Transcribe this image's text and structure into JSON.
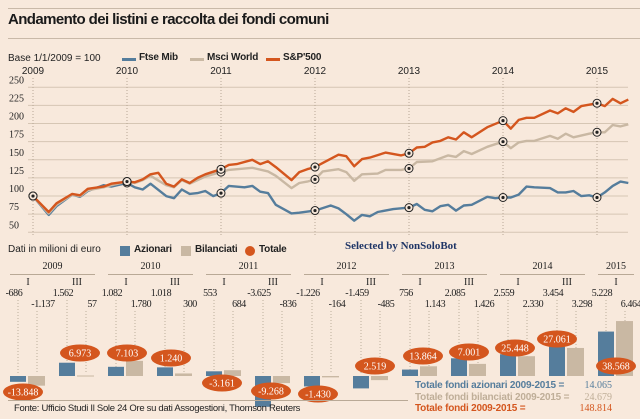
{
  "header": {
    "title": "Andamento dei listini e raccolta dei fondi comuni"
  },
  "top_chart": {
    "base_label": "Base 1/1/2009 = 100"
  },
  "bottom_chart": {
    "unit_label": "Dati in milioni di euro",
    "legend": [
      {
        "name": "Azionari",
        "color": "#557d9c",
        "shape": "square"
      },
      {
        "name": "Bilanciati",
        "color": "#c9b8a3",
        "shape": "square"
      },
      {
        "name": "Totale",
        "color": "#d4561e",
        "shape": "circle"
      }
    ]
  },
  "watermark": "Selected by NonSoloBot",
  "summary": [
    {
      "label": "Totale fondi azionari 2009-2015 =",
      "value": "14.065",
      "color": "#557d9c"
    },
    {
      "label": "Totale fondi bilanciati 2009-2015 =",
      "value": "24.679",
      "color": "#bfae98"
    },
    {
      "label": "Totale fondi 2009-2015 =",
      "value": "148.814",
      "color": "#d4561e"
    }
  ],
  "source": "Fonte: Ufficio Studi Il Sole 24 Ore su dati Assogestioni, Thomson Reuters",
  "chart_data": [
    {
      "type": "line",
      "xlabel": "",
      "ylabel": "",
      "ylim": [
        50,
        250
      ],
      "yticks": [
        50,
        75,
        100,
        125,
        150,
        175,
        200,
        225,
        250
      ],
      "xticks": [
        "2009",
        "2010",
        "2011",
        "2012",
        "2013",
        "2014",
        "2015"
      ],
      "grid": true,
      "legend_position": "top",
      "series": [
        {
          "name": "Ftse Mib",
          "color": "#557d9c",
          "points": [
            [
              "2009-01",
              100
            ],
            [
              "2009-03",
              74
            ],
            [
              "2009-04",
              86
            ],
            [
              "2009-06",
              102
            ],
            [
              "2009-07",
              99
            ],
            [
              "2009-08",
              107
            ],
            [
              "2009-10",
              115
            ],
            [
              "2009-11",
              113
            ],
            [
              "2010-01",
              118
            ],
            [
              "2010-02",
              112
            ],
            [
              "2010-03",
              109
            ],
            [
              "2010-04",
              117
            ],
            [
              "2010-06",
              100
            ],
            [
              "2010-07",
              97
            ],
            [
              "2010-08",
              109
            ],
            [
              "2010-09",
              103
            ],
            [
              "2010-10",
              104
            ],
            [
              "2010-11",
              107
            ],
            [
              "2010-12",
              100
            ],
            [
              "2011-01",
              104
            ],
            [
              "2011-02",
              114
            ],
            [
              "2011-04",
              112
            ],
            [
              "2011-05",
              114
            ],
            [
              "2011-06",
              106
            ],
            [
              "2011-07",
              104
            ],
            [
              "2011-08",
              88
            ],
            [
              "2011-10",
              76
            ],
            [
              "2011-11",
              77
            ],
            [
              "2012-01",
              80
            ],
            [
              "2012-03",
              87
            ],
            [
              "2012-04",
              83
            ],
            [
              "2012-05",
              75
            ],
            [
              "2012-06",
              66
            ],
            [
              "2012-07",
              74
            ],
            [
              "2012-08",
              72
            ],
            [
              "2012-09",
              78
            ],
            [
              "2012-11",
              82
            ],
            [
              "2013-01",
              84
            ],
            [
              "2013-02",
              89
            ],
            [
              "2013-03",
              81
            ],
            [
              "2013-04",
              79
            ],
            [
              "2013-05",
              86
            ],
            [
              "2013-06",
              88
            ],
            [
              "2013-07",
              80
            ],
            [
              "2013-08",
              87
            ],
            [
              "2013-09",
              88
            ],
            [
              "2013-11",
              99
            ],
            [
              "2013-12",
              97
            ],
            [
              "2014-01",
              98
            ],
            [
              "2014-02",
              98
            ],
            [
              "2014-03",
              102
            ],
            [
              "2014-04",
              113
            ],
            [
              "2014-05",
              112
            ],
            [
              "2014-07",
              111
            ],
            [
              "2014-08",
              105
            ],
            [
              "2014-09",
              105
            ],
            [
              "2014-10",
              107
            ],
            [
              "2014-11",
              100
            ],
            [
              "2014-12",
              101
            ],
            [
              "2015-01",
              98
            ],
            [
              "2015-02",
              105
            ],
            [
              "2015-03",
              114
            ],
            [
              "2015-04",
              120
            ],
            [
              "2015-05",
              118
            ]
          ]
        },
        {
          "name": "Msci World",
          "color": "#c9b8a3",
          "points": [
            [
              "2009-01",
              100
            ],
            [
              "2009-03",
              76
            ],
            [
              "2009-04",
              88
            ],
            [
              "2009-06",
              102
            ],
            [
              "2009-07",
              100
            ],
            [
              "2009-08",
              108
            ],
            [
              "2009-10",
              112
            ],
            [
              "2009-11",
              115
            ],
            [
              "2010-01",
              120
            ],
            [
              "2010-02",
              118
            ],
            [
              "2010-03",
              122
            ],
            [
              "2010-04",
              128
            ],
            [
              "2010-06",
              115
            ],
            [
              "2010-07",
              112
            ],
            [
              "2010-08",
              122
            ],
            [
              "2010-09",
              117
            ],
            [
              "2010-10",
              122
            ],
            [
              "2010-11",
              127
            ],
            [
              "2011-01",
              133
            ],
            [
              "2011-02",
              136
            ],
            [
              "2011-05",
              139
            ],
            [
              "2011-07",
              134
            ],
            [
              "2011-08",
              128
            ],
            [
              "2011-10",
              111
            ],
            [
              "2011-11",
              118
            ],
            [
              "2011-12",
              120
            ],
            [
              "2012-01",
              123
            ],
            [
              "2012-02",
              134
            ],
            [
              "2012-04",
              137
            ],
            [
              "2012-05",
              133
            ],
            [
              "2012-06",
              121
            ],
            [
              "2012-07",
              130
            ],
            [
              "2012-09",
              131
            ],
            [
              "2012-10",
              136
            ],
            [
              "2012-12",
              136
            ],
            [
              "2013-01",
              138
            ],
            [
              "2013-02",
              147
            ],
            [
              "2013-04",
              148
            ],
            [
              "2013-06",
              156
            ],
            [
              "2013-07",
              154
            ],
            [
              "2013-08",
              162
            ],
            [
              "2013-09",
              158
            ],
            [
              "2013-11",
              168
            ],
            [
              "2014-01",
              175
            ],
            [
              "2014-02",
              166
            ],
            [
              "2014-03",
              174
            ],
            [
              "2014-04",
              176
            ],
            [
              "2014-05",
              176
            ],
            [
              "2014-07",
              183
            ],
            [
              "2014-08",
              179
            ],
            [
              "2014-09",
              186
            ],
            [
              "2014-10",
              181
            ],
            [
              "2014-12",
              186
            ],
            [
              "2015-01",
              188
            ],
            [
              "2015-02",
              188
            ],
            [
              "2015-03",
              198
            ],
            [
              "2015-04",
              196
            ],
            [
              "2015-05",
              199
            ]
          ]
        },
        {
          "name": "S&P'500",
          "color": "#d4561e",
          "points": [
            [
              "2009-01",
              100
            ],
            [
              "2009-03",
              78
            ],
            [
              "2009-04",
              90
            ],
            [
              "2009-06",
              103
            ],
            [
              "2009-07",
              101
            ],
            [
              "2009-08",
              110
            ],
            [
              "2009-10",
              113
            ],
            [
              "2009-11",
              117
            ],
            [
              "2010-01",
              120
            ],
            [
              "2010-02",
              119
            ],
            [
              "2010-03",
              123
            ],
            [
              "2010-04",
              130
            ],
            [
              "2010-05",
              132
            ],
            [
              "2010-06",
              117
            ],
            [
              "2010-07",
              113
            ],
            [
              "2010-08",
              123
            ],
            [
              "2010-09",
              118
            ],
            [
              "2010-10",
              125
            ],
            [
              "2010-11",
              130
            ],
            [
              "2011-01",
              137
            ],
            [
              "2011-02",
              143
            ],
            [
              "2011-03",
              144
            ],
            [
              "2011-05",
              150
            ],
            [
              "2011-06",
              144
            ],
            [
              "2011-07",
              148
            ],
            [
              "2011-08",
              140
            ],
            [
              "2011-10",
              122
            ],
            [
              "2011-11",
              133
            ],
            [
              "2011-12",
              137
            ],
            [
              "2012-01",
              140
            ],
            [
              "2012-04",
              157
            ],
            [
              "2012-05",
              155
            ],
            [
              "2012-06",
              141
            ],
            [
              "2012-07",
              151
            ],
            [
              "2012-08",
              153
            ],
            [
              "2012-10",
              160
            ],
            [
              "2012-12",
              156
            ],
            [
              "2013-01",
              159
            ],
            [
              "2013-02",
              167
            ],
            [
              "2013-03",
              168
            ],
            [
              "2013-04",
              174
            ],
            [
              "2013-05",
              176
            ],
            [
              "2013-06",
              181
            ],
            [
              "2013-07",
              178
            ],
            [
              "2013-08",
              188
            ],
            [
              "2013-09",
              181
            ],
            [
              "2013-11",
              195
            ],
            [
              "2014-01",
              204
            ],
            [
              "2014-02",
              193
            ],
            [
              "2014-03",
              205
            ],
            [
              "2014-04",
              208
            ],
            [
              "2014-05",
              208
            ],
            [
              "2014-07",
              218
            ],
            [
              "2014-08",
              214
            ],
            [
              "2014-09",
              221
            ],
            [
              "2014-10",
              216
            ],
            [
              "2014-11",
              224
            ],
            [
              "2015-01",
              228
            ],
            [
              "2015-02",
              224
            ],
            [
              "2015-03",
              234
            ],
            [
              "2015-04",
              228
            ],
            [
              "2015-05",
              233
            ]
          ]
        }
      ]
    },
    {
      "type": "bar",
      "years": [
        "2009",
        "2010",
        "2011",
        "2012",
        "2013",
        "2014",
        "2015"
      ],
      "categories": [
        {
          "year": "2009",
          "period": "I"
        },
        {
          "year": "2009",
          "period": "III"
        },
        {
          "year": "2010",
          "period": "I"
        },
        {
          "year": "2010",
          "period": "III"
        },
        {
          "year": "2011",
          "period": "I"
        },
        {
          "year": "2011",
          "period": "III"
        },
        {
          "year": "2012",
          "period": "I"
        },
        {
          "year": "2012",
          "period": "III"
        },
        {
          "year": "2013",
          "period": "I"
        },
        {
          "year": "2013",
          "period": "III"
        },
        {
          "year": "2014",
          "period": "I"
        },
        {
          "year": "2014",
          "period": "III"
        },
        {
          "year": "2015",
          "period": "I"
        }
      ],
      "series": [
        {
          "name": "Azionari",
          "values": [
            -686,
            1562,
            1082,
            1018,
            553,
            -3625,
            -1226,
            -1459,
            756,
            2085,
            2559,
            3454,
            5228
          ]
        },
        {
          "name": "Bilanciati",
          "values": [
            -1137,
            57,
            1780,
            300,
            684,
            -836,
            -164,
            -485,
            1143,
            1426,
            2330,
            3298,
            6464
          ]
        },
        {
          "name": "Totale",
          "values": [
            -13848,
            6973,
            7103,
            1240,
            -3161,
            -9268,
            -1430,
            2519,
            13864,
            7001,
            25448,
            27061,
            38568
          ]
        }
      ]
    }
  ]
}
